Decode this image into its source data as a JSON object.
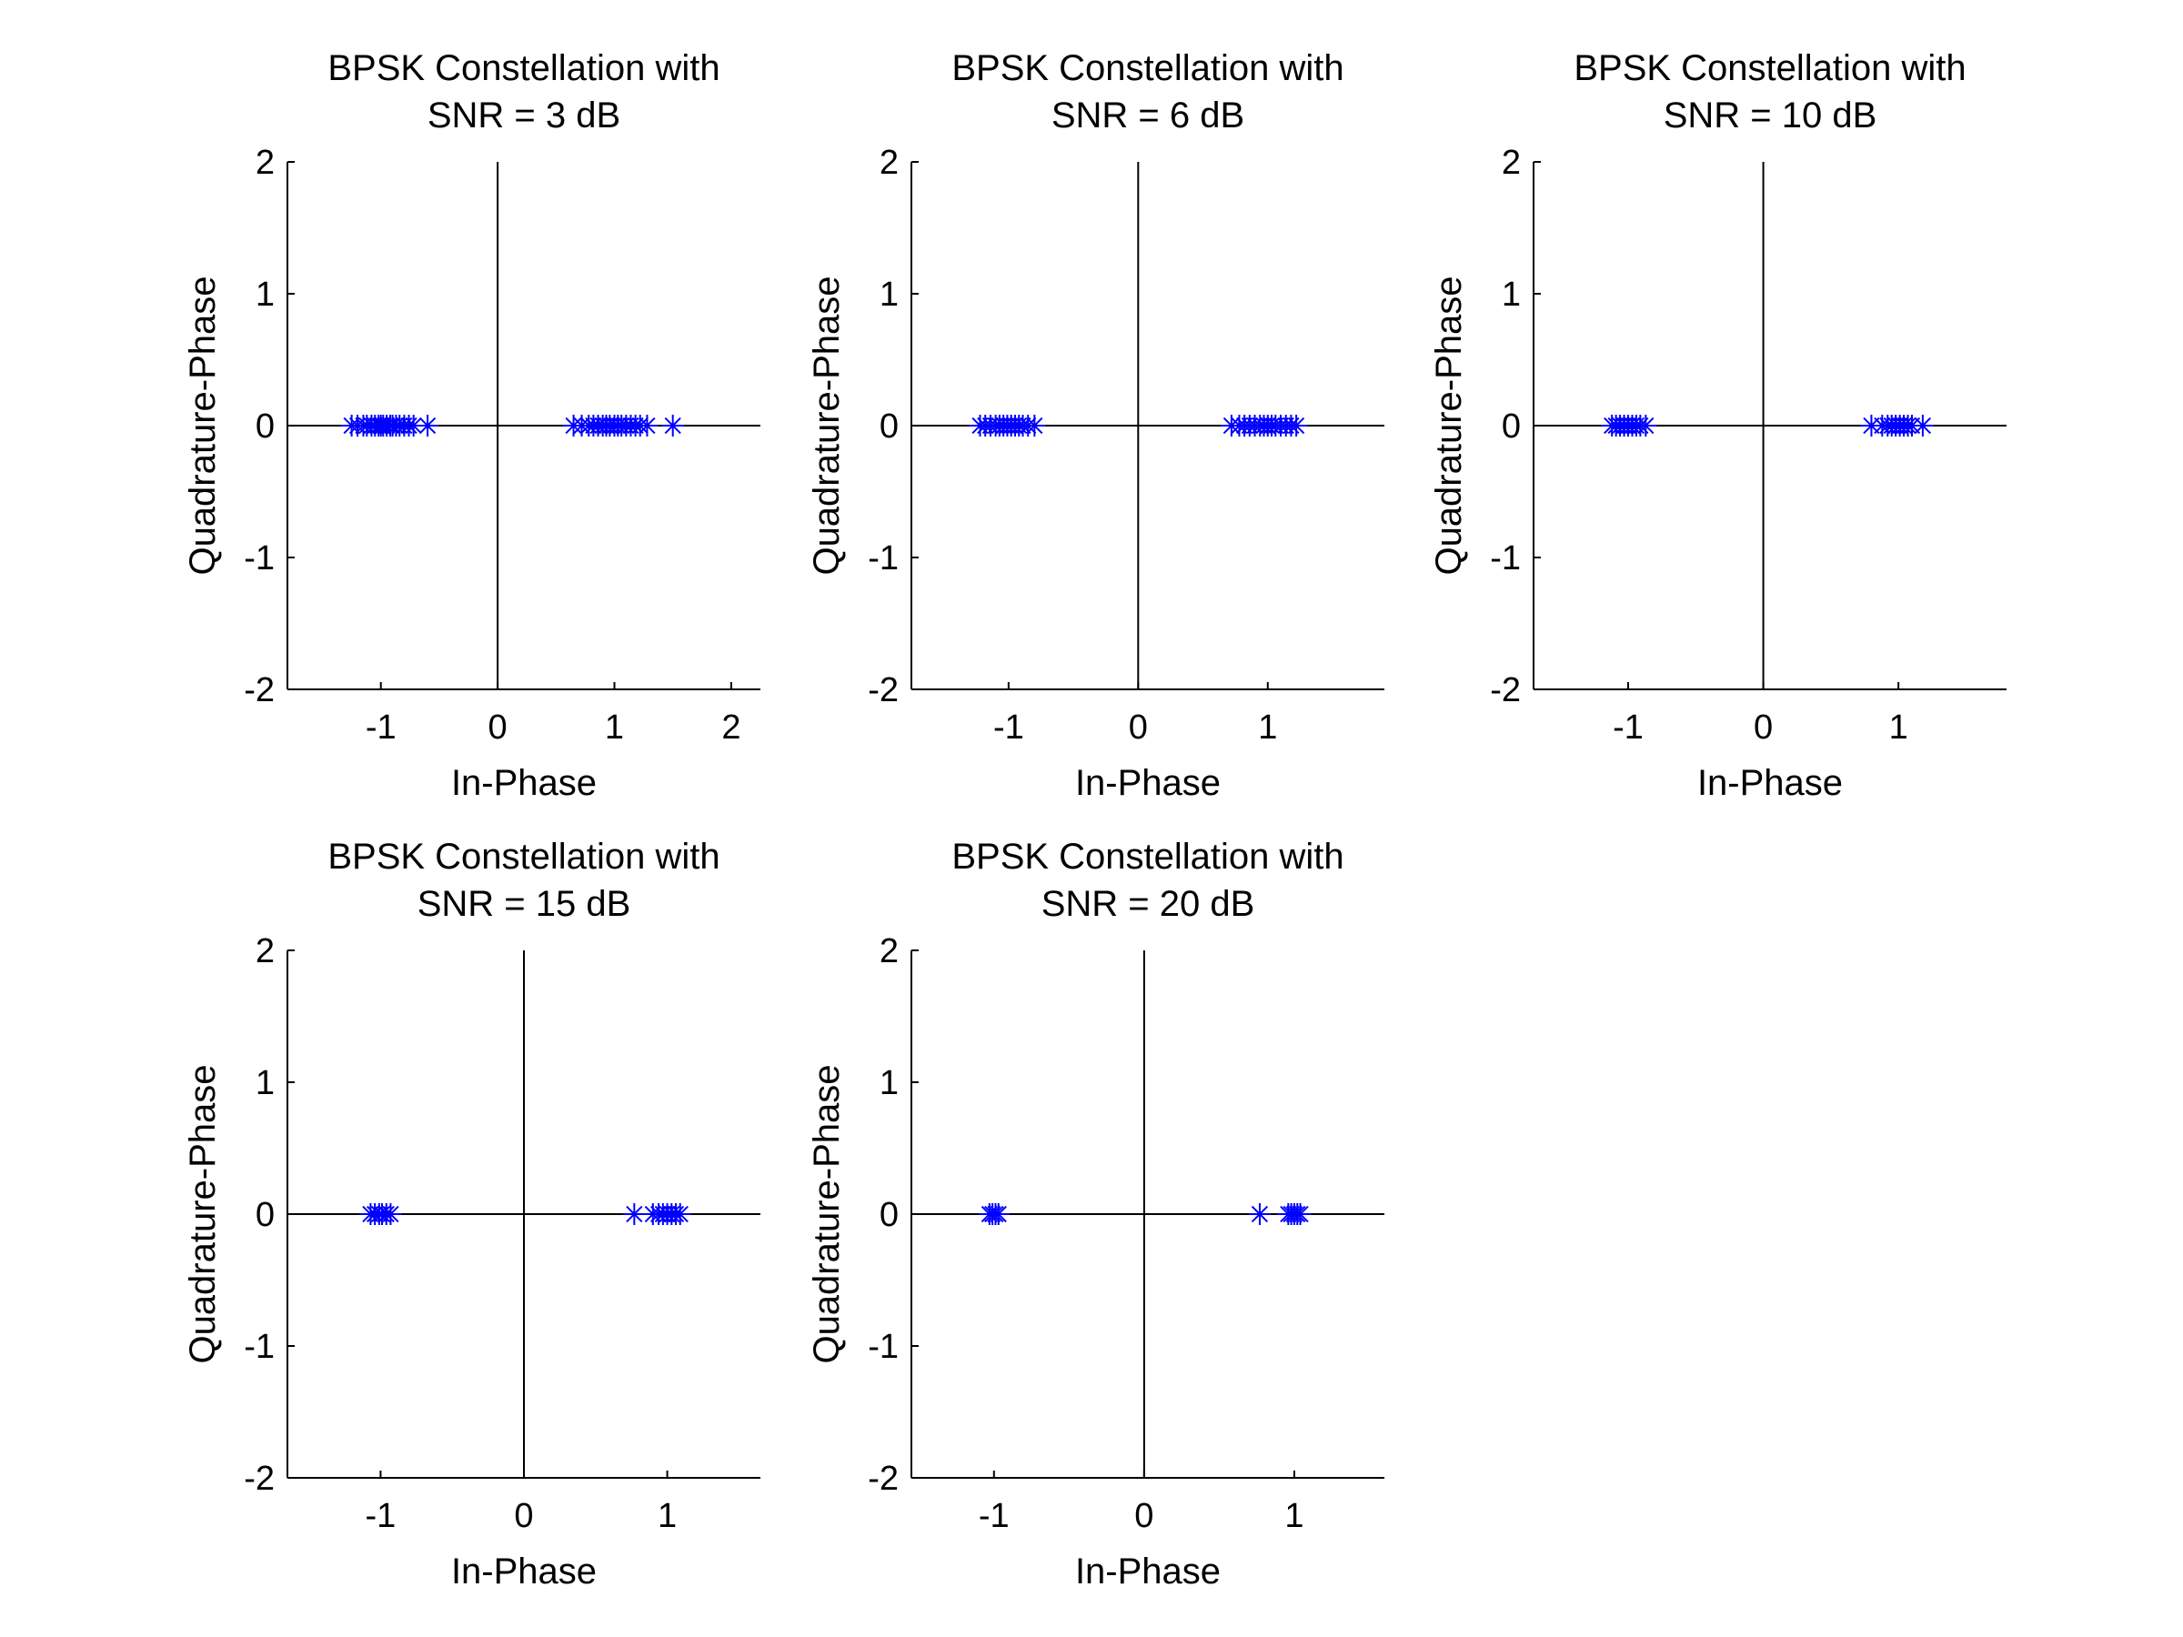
{
  "chart_data": [
    {
      "type": "scatter",
      "title": [
        "BPSK Constellation with",
        "SNR = 3 dB"
      ],
      "xlabel": "In-Phase",
      "ylabel": "Quadrature-Phase",
      "xlim": [
        -1.8,
        2.25
      ],
      "ylim": [
        -2,
        2
      ],
      "xticks": [
        -1,
        0,
        1,
        2
      ],
      "yticks": [
        -2,
        -1,
        0,
        1,
        2
      ],
      "marker": "asterisk",
      "marker_color": "#0000ff",
      "grid": false,
      "points": {
        "x": [
          -1.25,
          -1.2,
          -1.15,
          -1.12,
          -1.08,
          -1.05,
          -1.02,
          -1.0,
          -0.98,
          -0.95,
          -0.92,
          -0.9,
          -0.87,
          -0.84,
          -0.8,
          -0.76,
          -0.72,
          -0.6,
          0.65,
          0.72,
          0.78,
          0.82,
          0.86,
          0.9,
          0.93,
          0.96,
          1.0,
          1.03,
          1.06,
          1.1,
          1.14,
          1.18,
          1.22,
          1.28,
          1.5
        ],
        "y": [
          0,
          0,
          0,
          0,
          0,
          0,
          0,
          0,
          0,
          0,
          0,
          0,
          0,
          0,
          0,
          0,
          0,
          0,
          0,
          0,
          0,
          0,
          0,
          0,
          0,
          0,
          0,
          0,
          0,
          0,
          0,
          0,
          0,
          0,
          0
        ]
      }
    },
    {
      "type": "scatter",
      "title": [
        "BPSK Constellation with",
        "SNR = 6 dB"
      ],
      "xlabel": "In-Phase",
      "ylabel": "Quadrature-Phase",
      "xlim": [
        -1.75,
        1.9
      ],
      "ylim": [
        -2,
        2
      ],
      "xticks": [
        -1,
        0,
        1
      ],
      "yticks": [
        -2,
        -1,
        0,
        1,
        2
      ],
      "marker": "asterisk",
      "marker_color": "#0000ff",
      "grid": false,
      "points": {
        "x": [
          -1.22,
          -1.18,
          -1.14,
          -1.1,
          -1.07,
          -1.04,
          -1.01,
          -0.98,
          -0.95,
          -0.92,
          -0.89,
          -0.85,
          -0.8,
          0.72,
          0.78,
          0.82,
          0.86,
          0.9,
          0.94,
          0.97,
          1.0,
          1.03,
          1.06,
          1.1,
          1.14,
          1.18,
          1.22
        ],
        "y": [
          0,
          0,
          0,
          0,
          0,
          0,
          0,
          0,
          0,
          0,
          0,
          0,
          0,
          0,
          0,
          0,
          0,
          0,
          0,
          0,
          0,
          0,
          0,
          0,
          0,
          0,
          0
        ]
      }
    },
    {
      "type": "scatter",
      "title": [
        "BPSK Constellation with",
        "SNR = 10 dB"
      ],
      "xlabel": "In-Phase",
      "ylabel": "Quadrature-Phase",
      "xlim": [
        -1.7,
        1.8
      ],
      "ylim": [
        -2,
        2
      ],
      "xticks": [
        -1,
        0,
        1
      ],
      "yticks": [
        -2,
        -1,
        0,
        1,
        2
      ],
      "marker": "asterisk",
      "marker_color": "#0000ff",
      "grid": false,
      "points": {
        "x": [
          -1.12,
          -1.09,
          -1.06,
          -1.03,
          -1.0,
          -0.97,
          -0.94,
          -0.91,
          -0.87,
          0.8,
          0.88,
          0.92,
          0.95,
          0.98,
          1.01,
          1.04,
          1.07,
          1.1,
          1.18
        ],
        "y": [
          0,
          0,
          0,
          0,
          0,
          0,
          0,
          0,
          0,
          0,
          0,
          0,
          0,
          0,
          0,
          0,
          0,
          0,
          0
        ]
      }
    },
    {
      "type": "scatter",
      "title": [
        "BPSK Constellation with",
        "SNR = 15 dB"
      ],
      "xlabel": "In-Phase",
      "ylabel": "Quadrature-Phase",
      "xlim": [
        -1.65,
        1.65
      ],
      "ylim": [
        -2,
        2
      ],
      "xticks": [
        -1,
        0,
        1
      ],
      "yticks": [
        -2,
        -1,
        0,
        1,
        2
      ],
      "marker": "asterisk",
      "marker_color": "#0000ff",
      "grid": false,
      "points": {
        "x": [
          -1.07,
          -1.04,
          -1.01,
          -0.99,
          -0.96,
          -0.93,
          0.77,
          0.9,
          0.94,
          0.97,
          1.0,
          1.03,
          1.06,
          1.09
        ],
        "y": [
          0,
          0,
          0,
          0,
          0,
          0,
          0,
          0,
          0,
          0,
          0,
          0,
          0,
          0
        ]
      }
    },
    {
      "type": "scatter",
      "title": [
        "BPSK Constellation with",
        "SNR = 20 dB"
      ],
      "xlabel": "In-Phase",
      "ylabel": "Quadrature-Phase",
      "xlim": [
        -1.55,
        1.6
      ],
      "ylim": [
        -2,
        2
      ],
      "xticks": [
        -1,
        0,
        1
      ],
      "yticks": [
        -2,
        -1,
        0,
        1,
        2
      ],
      "marker": "asterisk",
      "marker_color": "#0000ff",
      "grid": false,
      "points": {
        "x": [
          -1.03,
          -1.01,
          -0.99,
          -0.97,
          0.77,
          0.96,
          0.98,
          1.0,
          1.02,
          1.04
        ],
        "y": [
          0,
          0,
          0,
          0,
          0,
          0,
          0,
          0,
          0,
          0
        ]
      }
    }
  ]
}
